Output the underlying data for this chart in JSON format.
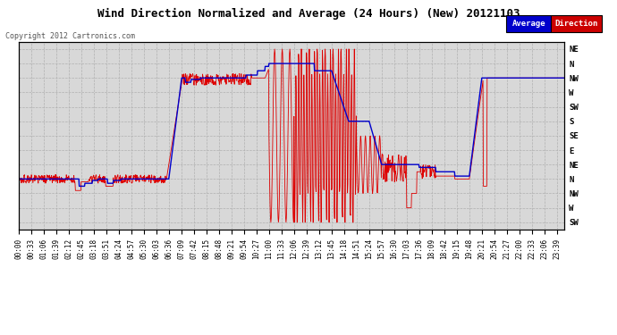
{
  "title": "Wind Direction Normalized and Average (24 Hours) (New) 20121103",
  "copyright": "Copyright 2012 Cartronics.com",
  "background_color": "#ffffff",
  "plot_bg_color": "#d8d8d8",
  "grid_color": "#b0b0b0",
  "ytick_labels": [
    "NE",
    "N",
    "NW",
    "W",
    "SW",
    "S",
    "SE",
    "E",
    "NE",
    "N",
    "NW",
    "W",
    "SW"
  ],
  "ytick_values": [
    1,
    2,
    3,
    4,
    5,
    6,
    7,
    8,
    9,
    10,
    11,
    12,
    13
  ],
  "title_fontsize": 9,
  "tick_fontsize": 6.5,
  "copyright_fontsize": 6
}
